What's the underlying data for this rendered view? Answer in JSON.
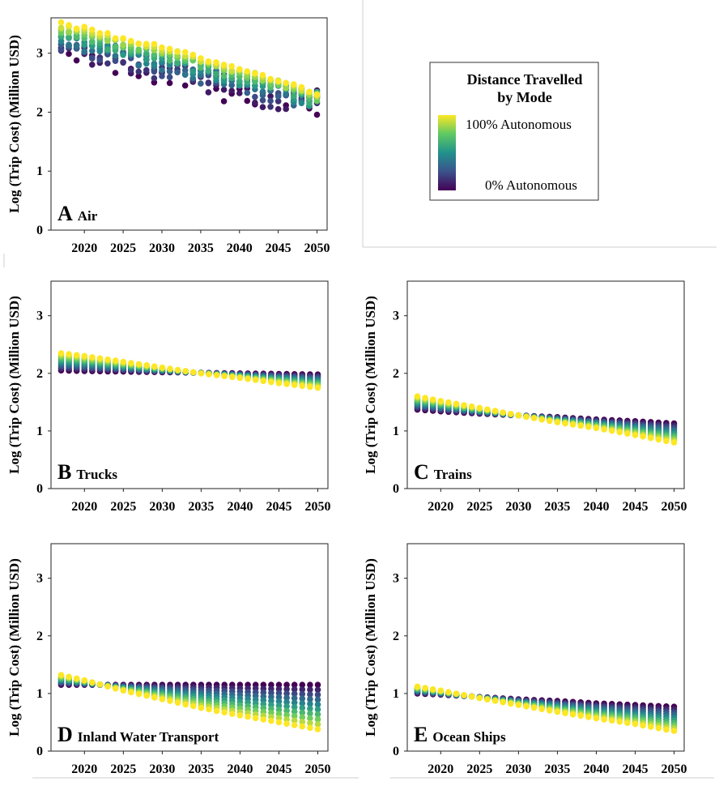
{
  "colors": {
    "viridis_low": "#440154",
    "viridis_mid": "#21918c",
    "viridis_high": "#fde725"
  },
  "legend": {
    "title_line1": "Distance  Travelled",
    "title_line2": "by Mode",
    "high_label": "100% Autonomous",
    "low_label": "0% Autonomous"
  },
  "chart_data": [
    {
      "type": "scatter",
      "panel": "A",
      "title": "Air",
      "ylabel": "Log (Trip Cost) (Million USD)",
      "x_range": [
        2017,
        2050
      ],
      "ylim": [
        0,
        3.6
      ],
      "xticks": [
        2020,
        2025,
        2030,
        2035,
        2040,
        2045,
        2050
      ],
      "yticks": [
        0,
        1,
        2,
        3
      ],
      "color_scale": "% of distance travelled autonomously (0% dark purple - 100% yellow)",
      "series": [
        {
          "name": "100% Autonomous",
          "x": [
            2017,
            2020,
            2025,
            2030,
            2035,
            2040,
            2045,
            2050
          ],
          "y": [
            3.5,
            3.42,
            3.25,
            3.1,
            2.92,
            2.72,
            2.55,
            2.3
          ]
        },
        {
          "name": "0% Autonomous upper",
          "x": [
            2017,
            2020,
            2025,
            2030,
            2035,
            2040,
            2045,
            2050
          ],
          "y": [
            3.15,
            3.1,
            3.0,
            2.85,
            2.72,
            2.6,
            2.45,
            2.4
          ]
        },
        {
          "name": "0% Autonomous lower",
          "x": [
            2017,
            2020,
            2025,
            2030,
            2035,
            2040,
            2045,
            2050
          ],
          "y": [
            2.9,
            2.8,
            2.6,
            2.45,
            2.3,
            2.15,
            1.95,
            1.8
          ]
        }
      ]
    },
    {
      "type": "scatter",
      "panel": "B",
      "title": "Trucks",
      "ylabel": "Log (Trip Cost) (Million USD)",
      "x_range": [
        2017,
        2050
      ],
      "ylim": [
        0,
        3.6
      ],
      "xticks": [
        2020,
        2025,
        2030,
        2035,
        2040,
        2045,
        2050
      ],
      "yticks": [
        0,
        1,
        2,
        3
      ],
      "series": [
        {
          "name": "100% Autonomous",
          "x": [
            2017,
            2020,
            2025,
            2030,
            2035,
            2040,
            2045,
            2050
          ],
          "y": [
            2.35,
            2.3,
            2.2,
            2.1,
            2.0,
            1.92,
            1.83,
            1.75
          ]
        },
        {
          "name": "0% Autonomous",
          "x": [
            2017,
            2020,
            2025,
            2030,
            2035,
            2040,
            2045,
            2050
          ],
          "y": [
            2.05,
            2.04,
            2.03,
            2.02,
            2.01,
            2.0,
            1.99,
            1.98
          ]
        }
      ]
    },
    {
      "type": "scatter",
      "panel": "C",
      "title": "Trains",
      "ylabel": "Log (Trip Cost) (Million USD)",
      "x_range": [
        2017,
        2050
      ],
      "ylim": [
        0,
        3.6
      ],
      "xticks": [
        2020,
        2025,
        2030,
        2035,
        2040,
        2045,
        2050
      ],
      "yticks": [
        0,
        1,
        2,
        3
      ],
      "series": [
        {
          "name": "100% Autonomous",
          "x": [
            2017,
            2020,
            2025,
            2030,
            2035,
            2040,
            2045,
            2050
          ],
          "y": [
            1.6,
            1.52,
            1.4,
            1.27,
            1.15,
            1.05,
            0.93,
            0.8
          ]
        },
        {
          "name": "0% Autonomous",
          "x": [
            2017,
            2020,
            2025,
            2030,
            2035,
            2040,
            2045,
            2050
          ],
          "y": [
            1.37,
            1.34,
            1.3,
            1.27,
            1.24,
            1.2,
            1.17,
            1.13
          ]
        }
      ]
    },
    {
      "type": "scatter",
      "panel": "D",
      "title": "Inland Water Transport",
      "ylabel": "Log (Trip Cost) (Million USD)",
      "x_range": [
        2017,
        2050
      ],
      "ylim": [
        0,
        3.6
      ],
      "xticks": [
        2020,
        2025,
        2030,
        2035,
        2040,
        2045,
        2050
      ],
      "yticks": [
        0,
        1,
        2,
        3
      ],
      "series": [
        {
          "name": "100% Autonomous",
          "x": [
            2017,
            2020,
            2025,
            2030,
            2035,
            2040,
            2045,
            2050
          ],
          "y": [
            1.32,
            1.23,
            1.05,
            0.9,
            0.75,
            0.62,
            0.5,
            0.38
          ]
        },
        {
          "name": "0% Autonomous",
          "x": [
            2017,
            2020,
            2025,
            2030,
            2035,
            2040,
            2045,
            2050
          ],
          "y": [
            1.15,
            1.15,
            1.15,
            1.15,
            1.15,
            1.15,
            1.15,
            1.15
          ]
        }
      ]
    },
    {
      "type": "scatter",
      "panel": "E",
      "title": "Ocean Ships",
      "ylabel": "Log (Trip Cost) (Million USD)",
      "x_range": [
        2017,
        2050
      ],
      "ylim": [
        0,
        3.6
      ],
      "xticks": [
        2020,
        2025,
        2030,
        2035,
        2040,
        2045,
        2050
      ],
      "yticks": [
        0,
        1,
        2,
        3
      ],
      "series": [
        {
          "name": "100% Autonomous",
          "x": [
            2017,
            2020,
            2025,
            2030,
            2035,
            2040,
            2045,
            2050
          ],
          "y": [
            1.12,
            1.05,
            0.92,
            0.8,
            0.68,
            0.57,
            0.47,
            0.35
          ]
        },
        {
          "name": "0% Autonomous",
          "x": [
            2017,
            2020,
            2025,
            2030,
            2035,
            2040,
            2045,
            2050
          ],
          "y": [
            1.0,
            0.98,
            0.94,
            0.9,
            0.87,
            0.83,
            0.8,
            0.77
          ]
        }
      ]
    }
  ]
}
